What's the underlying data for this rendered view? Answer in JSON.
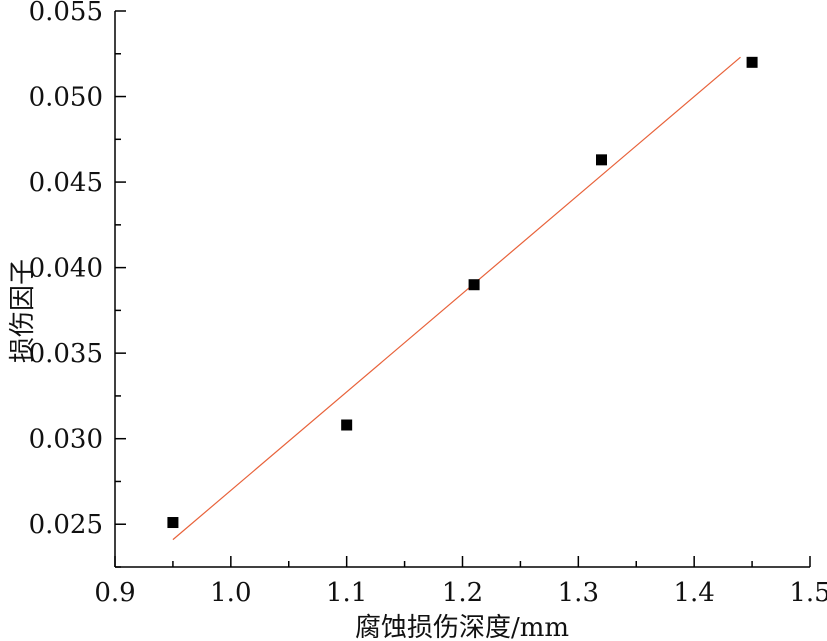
{
  "chart_data": {
    "type": "scatter",
    "title": "",
    "xlabel": "腐蚀损伤深度/mm",
    "ylabel": "损伤因子",
    "xlim": [
      0.9,
      1.5
    ],
    "ylim": [
      0.0225,
      0.055
    ],
    "x_ticks": [
      0.9,
      1.0,
      1.1,
      1.2,
      1.3,
      1.4,
      1.5
    ],
    "x_tick_labels": [
      "0.9",
      "1.0",
      "1.1",
      "1.2",
      "1.3",
      "1.4",
      "1.5"
    ],
    "y_ticks": [
      0.025,
      0.03,
      0.035,
      0.04,
      0.045,
      0.05,
      0.055
    ],
    "y_tick_labels": [
      "0.025",
      "0.030",
      "0.035",
      "0.040",
      "0.045",
      "0.050",
      "0.055"
    ],
    "grid": false,
    "legend": "none",
    "series": [
      {
        "type": "scatter",
        "marker": "square",
        "color": "#000000",
        "x": [
          0.95,
          1.1,
          1.21,
          1.32,
          1.45
        ],
        "y": [
          0.0251,
          0.0308,
          0.039,
          0.0463,
          0.052
        ]
      },
      {
        "type": "line",
        "role": "linear-fit",
        "color": "#e8623a",
        "x": [
          0.95,
          1.44
        ],
        "y": [
          0.0241,
          0.0523
        ]
      }
    ]
  }
}
